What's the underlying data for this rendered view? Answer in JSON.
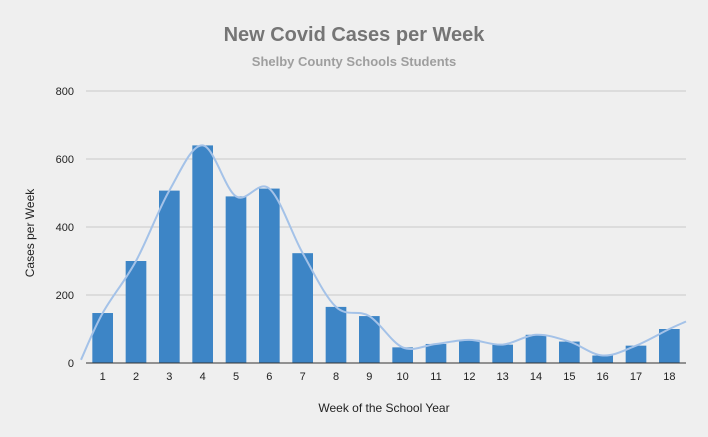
{
  "chart_data": {
    "type": "bar",
    "title": "New Covid Cases per Week",
    "subtitle": "Shelby County Schools Students",
    "xlabel": "Week of the School Year",
    "ylabel": "Cases per Week",
    "categories": [
      "1",
      "2",
      "3",
      "4",
      "5",
      "6",
      "7",
      "8",
      "9",
      "10",
      "11",
      "12",
      "13",
      "14",
      "15",
      "16",
      "17",
      "18"
    ],
    "series": [
      {
        "name": "Cases per Week",
        "values": [
          147,
          300,
          507,
          640,
          490,
          513,
          323,
          165,
          138,
          46,
          56,
          68,
          54,
          83,
          63,
          22,
          51,
          100
        ]
      }
    ],
    "ylim": [
      0,
      800
    ],
    "yticks": [
      0,
      200,
      400,
      600,
      800
    ],
    "grid": true,
    "trendline": "smooth",
    "colors": {
      "bar": "#3d85c6",
      "trendline": "#a4c2e8",
      "grid": "#c9c9c9",
      "background": "#efefef",
      "title": "#757575",
      "subtitle": "#9e9e9e"
    }
  }
}
